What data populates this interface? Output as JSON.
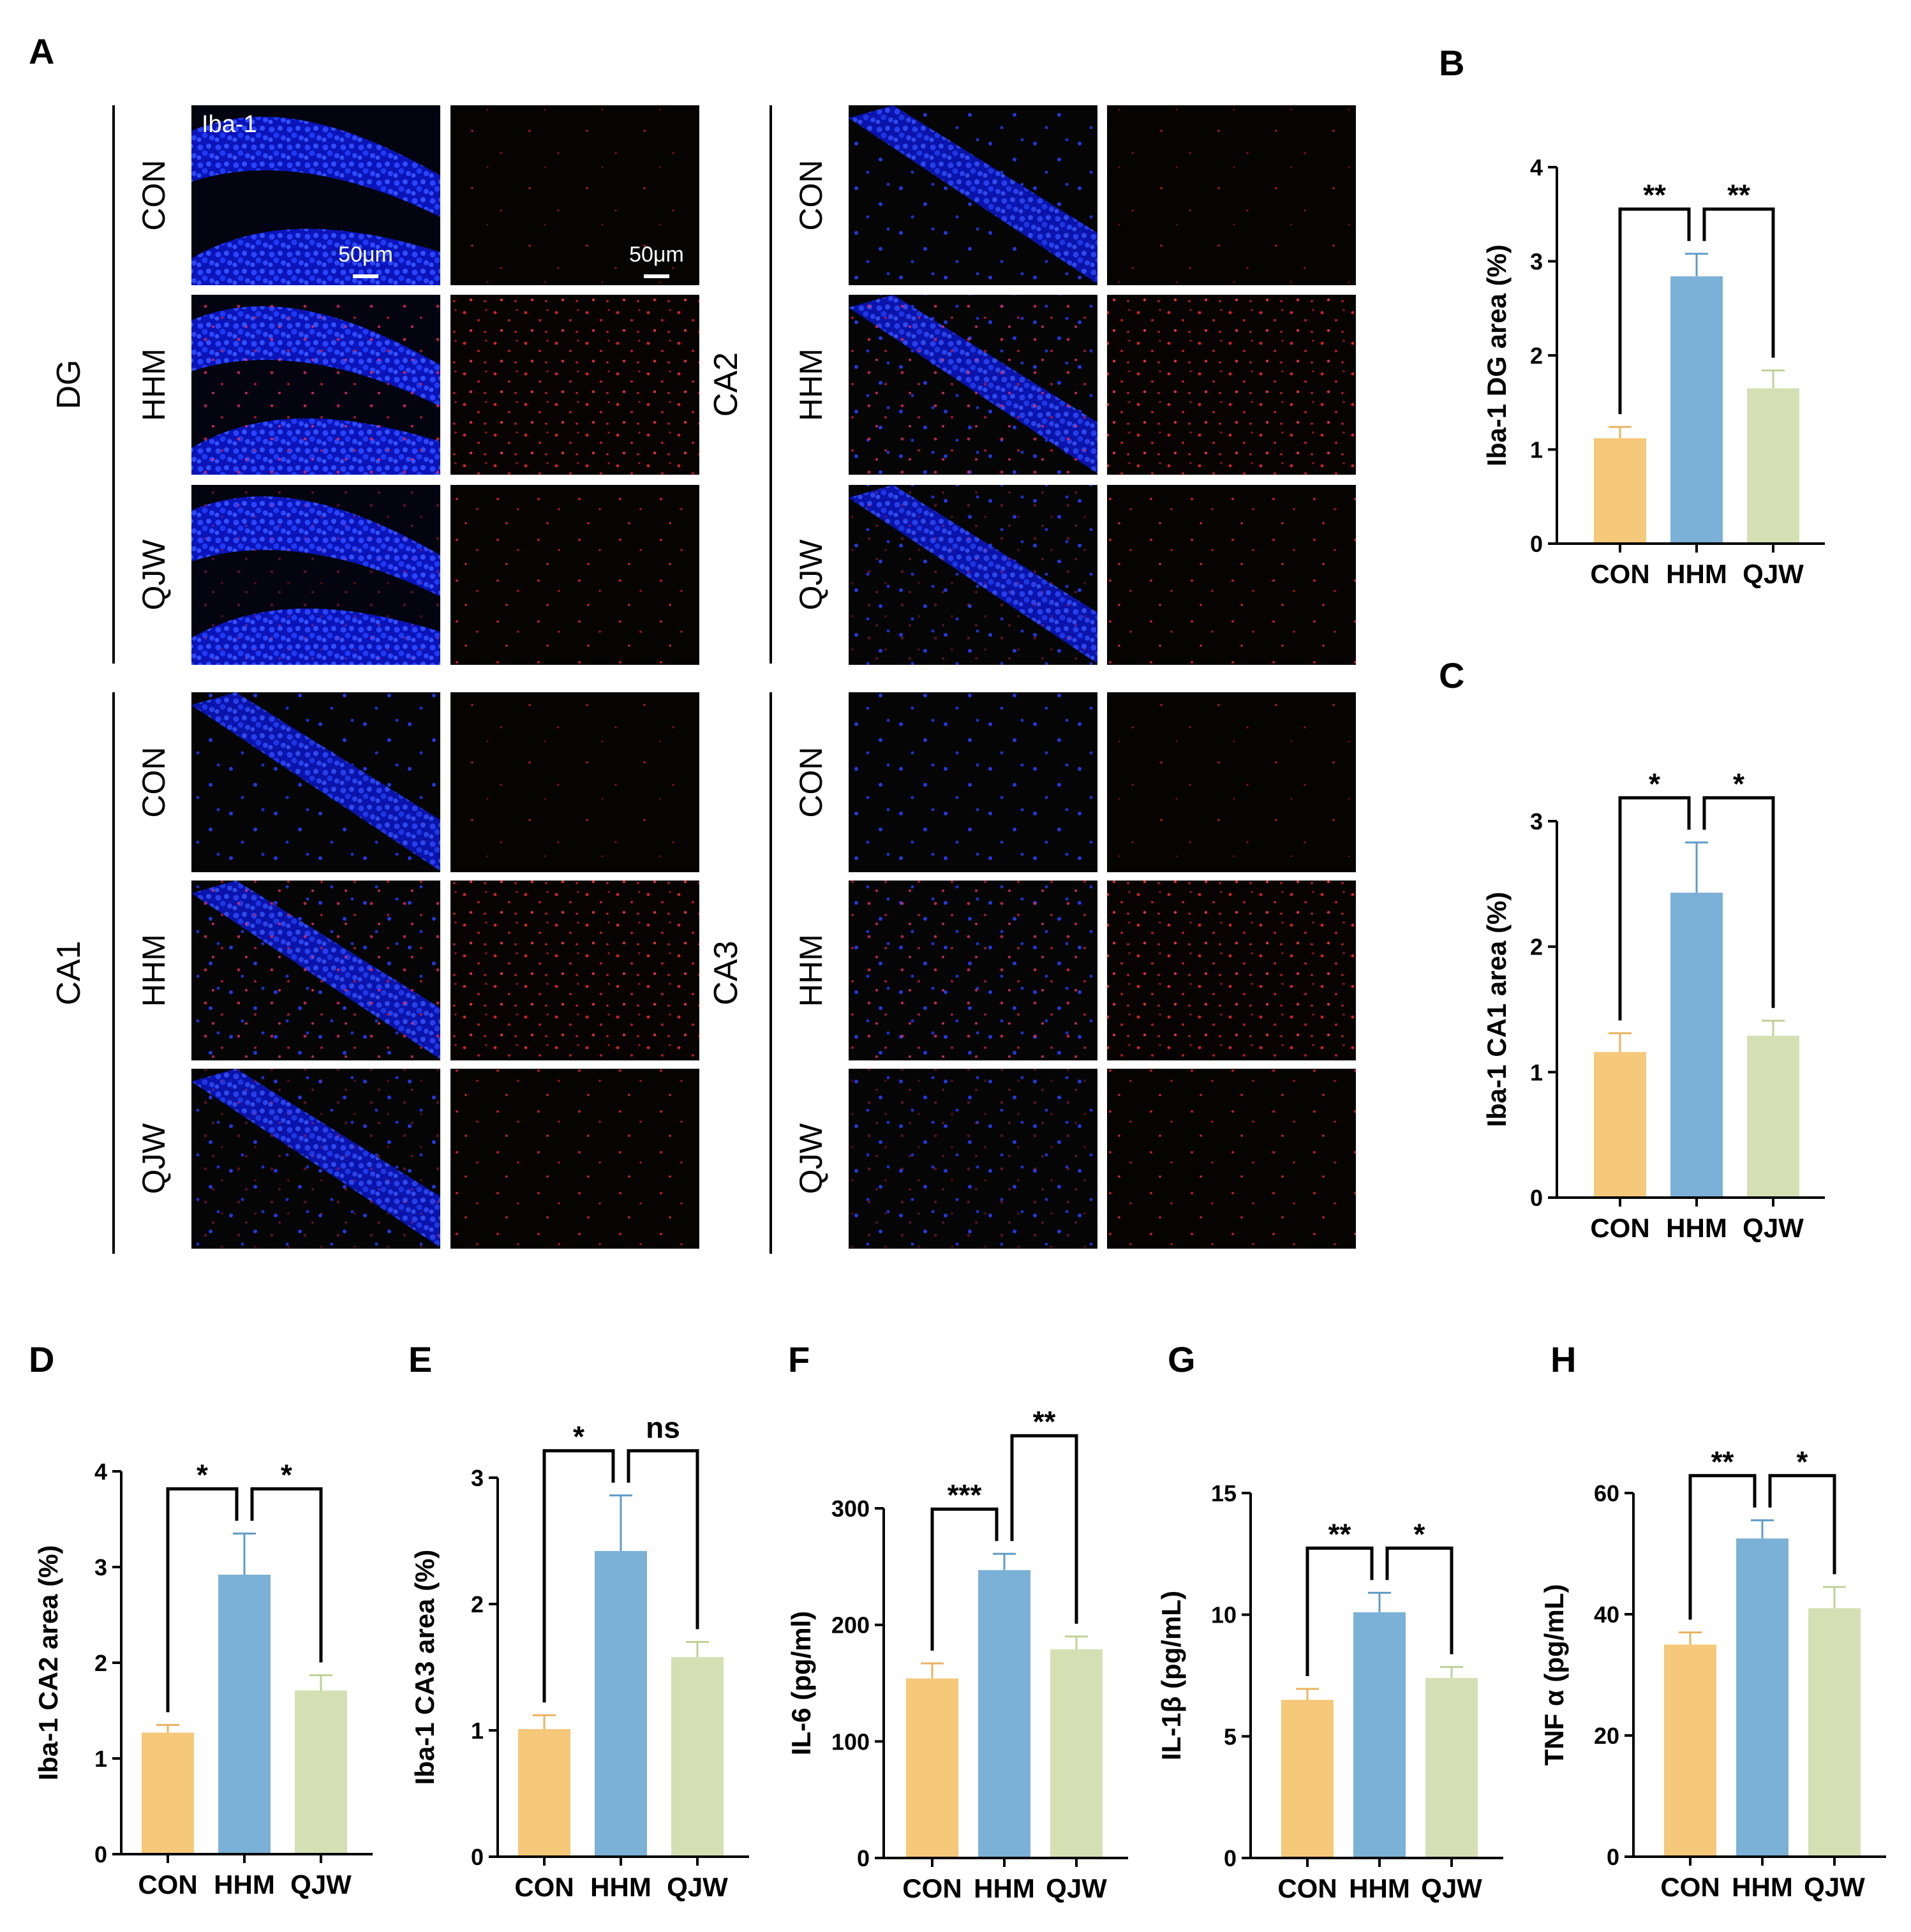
{
  "panel_a": {
    "letter": "A",
    "stain_label": "Iba-1",
    "scale_bar_label": "50μm",
    "groups": [
      "CON",
      "HHM",
      "QJW"
    ],
    "regions": [
      {
        "name": "DG"
      },
      {
        "name": "CA2"
      },
      {
        "name": "CA1"
      },
      {
        "name": "CA3"
      }
    ],
    "colors": {
      "nuclei": "#1a2cff",
      "microglia": "#d8202a",
      "background": "#050505"
    }
  },
  "colors": {
    "CON": "#f5c87a",
    "HHM": "#7bb1d6",
    "QJW": "#d4e0b3",
    "CON_err": "#e8b460",
    "HHM_err": "#5f9cc8",
    "QJW_err": "#bfd095"
  },
  "chart_data": [
    {
      "id": "B",
      "type": "bar",
      "letter": "B",
      "ylabel": "Iba-1 DG area (%)",
      "categories": [
        "CON",
        "HHM",
        "QJW"
      ],
      "values": [
        1.12,
        2.84,
        1.65
      ],
      "errors": [
        0.12,
        0.24,
        0.19
      ],
      "ylim": [
        0,
        4
      ],
      "yticks": [
        "0",
        "1",
        "2",
        "3",
        "4"
      ],
      "comparisons": [
        {
          "from": 0,
          "to": 1,
          "label": "**"
        },
        {
          "from": 1,
          "to": 2,
          "label": "**"
        }
      ]
    },
    {
      "id": "C",
      "type": "bar",
      "letter": "C",
      "ylabel": "Iba-1 CA1 area (%)",
      "categories": [
        "CON",
        "HHM",
        "QJW"
      ],
      "values": [
        1.16,
        2.43,
        1.29
      ],
      "errors": [
        0.15,
        0.4,
        0.12
      ],
      "ylim": [
        0,
        3
      ],
      "yticks": [
        "0",
        "1",
        "2",
        "3"
      ],
      "comparisons": [
        {
          "from": 0,
          "to": 1,
          "label": "*"
        },
        {
          "from": 1,
          "to": 2,
          "label": "*"
        }
      ]
    },
    {
      "id": "D",
      "type": "bar",
      "letter": "D",
      "ylabel": "Iba-1 CA2 area (%)",
      "categories": [
        "CON",
        "HHM",
        "QJW"
      ],
      "values": [
        1.27,
        2.92,
        1.71
      ],
      "errors": [
        0.08,
        0.43,
        0.16
      ],
      "ylim": [
        0,
        4
      ],
      "yticks": [
        "0",
        "1",
        "2",
        "3",
        "4"
      ],
      "comparisons": [
        {
          "from": 0,
          "to": 1,
          "label": "*"
        },
        {
          "from": 1,
          "to": 2,
          "label": "*"
        }
      ]
    },
    {
      "id": "E",
      "type": "bar",
      "letter": "E",
      "ylabel": "Iba-1 CA3 area (%)",
      "categories": [
        "CON",
        "HHM",
        "QJW"
      ],
      "values": [
        1.01,
        2.42,
        1.58
      ],
      "errors": [
        0.11,
        0.44,
        0.12
      ],
      "ylim": [
        0,
        3
      ],
      "yticks": [
        "0",
        "1",
        "2",
        "3"
      ],
      "comparisons": [
        {
          "from": 0,
          "to": 1,
          "label": "*"
        },
        {
          "from": 1,
          "to": 2,
          "label": "ns"
        }
      ]
    },
    {
      "id": "F",
      "type": "bar",
      "letter": "F",
      "ylabel": "IL-6 (pg/ml)",
      "categories": [
        "CON",
        "HHM",
        "QJW"
      ],
      "values": [
        154,
        247,
        179
      ],
      "errors": [
        13,
        14,
        11
      ],
      "ylim": [
        0,
        300
      ],
      "yticks": [
        "0",
        "100",
        "200",
        "300"
      ],
      "comparisons": [
        {
          "from": 0,
          "to": 1,
          "label": "***"
        },
        {
          "from": 1,
          "to": 2,
          "label": "**"
        }
      ]
    },
    {
      "id": "G",
      "type": "bar",
      "letter": "G",
      "ylabel": "IL-1β (pg/mL)",
      "categories": [
        "CON",
        "HHM",
        "QJW"
      ],
      "values": [
        6.5,
        10.1,
        7.4
      ],
      "errors": [
        0.45,
        0.8,
        0.45
      ],
      "ylim": [
        0,
        15
      ],
      "yticks": [
        "0",
        "5",
        "10",
        "15"
      ],
      "comparisons": [
        {
          "from": 0,
          "to": 1,
          "label": "**"
        },
        {
          "from": 1,
          "to": 2,
          "label": "*"
        }
      ]
    },
    {
      "id": "H",
      "type": "bar",
      "letter": "H",
      "ylabel": "TNF α (pg/mL)",
      "categories": [
        "CON",
        "HHM",
        "QJW"
      ],
      "values": [
        35,
        52.5,
        41
      ],
      "errors": [
        2,
        3,
        3.5
      ],
      "ylim": [
        0,
        60
      ],
      "yticks": [
        "0",
        "20",
        "40",
        "60"
      ],
      "comparisons": [
        {
          "from": 0,
          "to": 1,
          "label": "**"
        },
        {
          "from": 1,
          "to": 2,
          "label": "*"
        }
      ]
    }
  ]
}
